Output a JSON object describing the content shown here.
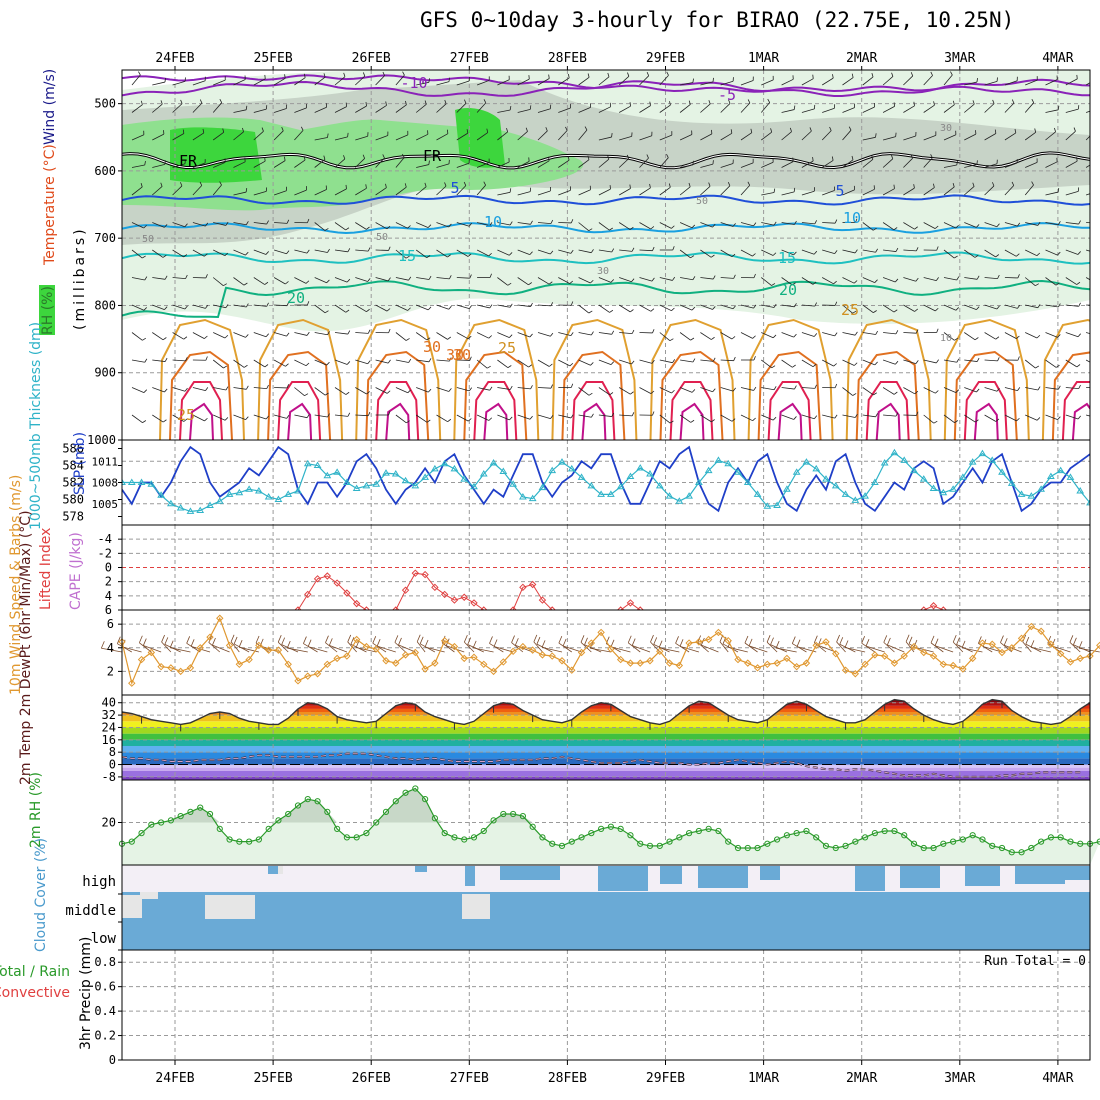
{
  "header": {
    "title": "GFS 0~10day 3-hourly for BIRAO (22.75E, 10.25N)"
  },
  "colors": {
    "grid": "#9a9a9a",
    "slp": "#1f3fc8",
    "thickness": "#2fb3c8",
    "lifted_index": "#e04040",
    "cape": "#c070d0",
    "wind_speed": "#e09830",
    "wind_barb": "#7a4a2a",
    "rh": "#2a9a2a",
    "rh_fill": "#e5f3e5",
    "cloud": "#6aaad6",
    "cloud_bg": "#f3eff6"
  },
  "chart_data": [
    {
      "id": "upper_air",
      "type": "contour",
      "ylabel": "(millibars)",
      "yticks": [
        500,
        600,
        700,
        800,
        900,
        1000
      ],
      "ylim": [
        450,
        1000
      ],
      "x": [
        "24FEB",
        "25FEB",
        "26FEB",
        "27FEB",
        "28FEB",
        "29FEB",
        "1MAR",
        "2MAR",
        "3MAR",
        "4MAR"
      ],
      "legend": [
        "RH (%)",
        "Temperature (°C)",
        "Wind (m/s)"
      ],
      "contour_labels": [
        "-10",
        "-5",
        "FR",
        "FR",
        "5",
        "5",
        "10",
        "10",
        "15",
        "15",
        "20",
        "20",
        "25",
        "25",
        "25",
        "30",
        "30",
        "30",
        "50",
        "50",
        "50",
        "30",
        "30",
        "10"
      ]
    },
    {
      "id": "slp_thickness",
      "type": "line",
      "ylabel_left": "1000~500mb Thickness (dm)",
      "ylabel_right": "SLP (mb)",
      "yticks_left": [
        578,
        580,
        582,
        584,
        586
      ],
      "yticks_right": [
        1005,
        1008,
        1011
      ],
      "series": [
        {
          "name": "SLP (mb)",
          "values": [
            1007,
            1005,
            1008,
            1008,
            1006,
            1008,
            1011,
            1013,
            1012,
            1008,
            1006,
            1007,
            1008,
            1010,
            1009,
            1011,
            1013,
            1012,
            1007,
            1005,
            1008,
            1008,
            1006,
            1008,
            1011,
            1012,
            1010,
            1007,
            1005,
            1007,
            1008,
            1010,
            1008,
            1011,
            1012,
            1009,
            1007,
            1005,
            1007,
            1006,
            1009,
            1012,
            1012,
            1008,
            1006,
            1008,
            1009,
            1011,
            1010,
            1012,
            1012,
            1008,
            1005,
            1005,
            1008,
            1011,
            1010,
            1012,
            1013,
            1008,
            1005,
            1004,
            1008,
            1010,
            1008,
            1011,
            1012,
            1008,
            1005,
            1004,
            1007,
            1009,
            1007,
            1011,
            1012,
            1008,
            1005,
            1004,
            1006,
            1008,
            1007,
            1010,
            1011,
            1010,
            1005,
            1006,
            1008,
            1010,
            1008,
            1011,
            1012,
            1008,
            1004,
            1005,
            1007,
            1008,
            1008,
            1010,
            1011,
            1012
          ]
        },
        {
          "name": "1000~500mb Thickness (dm)",
          "values": [
            582.0,
            582.0,
            582.0,
            581.8,
            580.5,
            579.5,
            579.0,
            578.6,
            578.7,
            579.3,
            579.8,
            580.6,
            580.8,
            581.2,
            581.0,
            580.3,
            580.0,
            580.6,
            581.0,
            584.2,
            584.0,
            582.8,
            583.2,
            582.0,
            581.3,
            581.6,
            581.8,
            583.1,
            583.0,
            582.2,
            581.6,
            582.6,
            583.6,
            584.2,
            583.6,
            582.4,
            581.5,
            583.0,
            584.3,
            583.3,
            581.8,
            580.3,
            580.1,
            581.4,
            583.4,
            584.4,
            583.6,
            582.6,
            581.6,
            580.6,
            580.6,
            581.5,
            582.7,
            583.7,
            583.0,
            581.6,
            580.4,
            579.8,
            580.4,
            582.0,
            583.4,
            584.6,
            584.2,
            583.2,
            582.0,
            580.6,
            579.2,
            579.3,
            581.2,
            583.2,
            584.4,
            583.6,
            582.4,
            581.6,
            580.6,
            579.9,
            580.4,
            582.0,
            584.3,
            585.5,
            584.6,
            583.4,
            582.4,
            581.3,
            580.8,
            581.2,
            582.6,
            584.4,
            585.4,
            584.6,
            583.2,
            581.9,
            580.6,
            580.4,
            581.2,
            582.7,
            583.4,
            582.6,
            581.0,
            579.6
          ]
        }
      ]
    },
    {
      "id": "stability",
      "type": "line",
      "ylabel": "Lifted Index",
      "ylabel_cape": "CAPE (J/kg)",
      "yticks": [
        -4,
        -2,
        0,
        2,
        4,
        6
      ],
      "ylim": [
        -6,
        6
      ],
      "series": [
        {
          "name": "Lifted Index",
          "segments": [
            {
              "start": 18,
              "values": [
                6.0,
                3.8,
                1.6,
                1.2,
                2.2,
                3.6,
                5.1,
                6.0
              ]
            },
            {
              "start": 28,
              "values": [
                6.0,
                3.2,
                0.8,
                1.0,
                2.8,
                3.8,
                4.6,
                4.2,
                5.0,
                6.0
              ]
            },
            {
              "start": 40,
              "values": [
                6.0,
                2.8,
                2.4,
                4.6,
                6.0
              ]
            },
            {
              "start": 51,
              "values": [
                6.0,
                5.0,
                6.0
              ]
            },
            {
              "start": 82,
              "values": [
                6.0,
                5.4,
                6.0
              ]
            }
          ]
        }
      ]
    },
    {
      "id": "wind10m",
      "type": "line",
      "ylabel": "10m Wind Speed & Barbs (m/s)",
      "yticks": [
        2,
        4,
        6
      ],
      "series": [
        {
          "name": "Speed",
          "values": [
            4.5,
            1.0,
            3.0,
            3.6,
            2.4,
            2.3,
            2.0,
            2.3,
            4.0,
            4.9,
            6.5,
            4.2,
            2.6,
            3.0,
            4.2,
            3.8,
            3.8,
            2.6,
            1.2,
            1.6,
            1.8,
            2.6,
            3.1,
            3.3,
            4.7,
            4.1,
            3.9,
            2.9,
            2.7,
            3.4,
            3.6,
            2.2,
            2.7,
            4.6,
            4.1,
            3.1,
            3.2,
            2.6,
            2.0,
            2.8,
            3.7,
            4.1,
            3.8,
            3.4,
            3.3,
            2.9,
            2.1,
            3.6,
            4.4,
            5.3,
            3.9,
            3.0,
            2.7,
            2.7,
            2.9,
            3.7,
            2.7,
            2.5,
            4.4,
            4.5,
            4.7,
            5.3,
            4.6,
            3.0,
            2.7,
            2.3,
            2.6,
            2.7,
            3.1,
            2.4,
            2.7,
            4.2,
            4.5,
            3.5,
            2.1,
            1.8,
            2.6,
            3.4,
            3.3,
            2.7,
            3.3,
            4.1,
            3.6,
            3.3,
            2.6,
            2.5,
            2.2,
            3.1,
            4.4,
            4.3,
            3.6,
            4.0,
            4.8,
            5.8,
            5.4,
            4.3,
            3.5,
            2.8,
            3.1,
            3.3,
            4.2
          ]
        }
      ]
    },
    {
      "id": "temperature",
      "type": "area",
      "ylabel": "2m Temp 2m DewPt (6hr Min/Max) (°C)",
      "yticks": [
        -8,
        0,
        8,
        16,
        24,
        32,
        40
      ],
      "ylim": [
        -10,
        45
      ],
      "series": [
        {
          "name": "2m Temp",
          "values": [
            34,
            33,
            31,
            29,
            28,
            27,
            26,
            27,
            30,
            33,
            34,
            33,
            30,
            28,
            27,
            26,
            26,
            30,
            36,
            40,
            39,
            36,
            31,
            29,
            28,
            27,
            28,
            33,
            38,
            40,
            39,
            34,
            31,
            29,
            27,
            26,
            28,
            33,
            38,
            40,
            39,
            35,
            32,
            29,
            28,
            27,
            29,
            34,
            38,
            40,
            39,
            35,
            31,
            29,
            27,
            26,
            28,
            33,
            38,
            41,
            40,
            36,
            32,
            29,
            28,
            27,
            29,
            34,
            39,
            41,
            39,
            35,
            31,
            29,
            27,
            27,
            29,
            34,
            39,
            42,
            41,
            36,
            32,
            29,
            27,
            26,
            28,
            33,
            39,
            42,
            41,
            35,
            31,
            28,
            27,
            26,
            27,
            31,
            36,
            40,
            38,
            34
          ]
        },
        {
          "name": "2m DewPt",
          "values": [
            5,
            4,
            4,
            3,
            3,
            2,
            2,
            2,
            3,
            3,
            3,
            4,
            4,
            5,
            6,
            6,
            5,
            5,
            5,
            5,
            5,
            6,
            6,
            7,
            7,
            7,
            6,
            5,
            4,
            4,
            3,
            4,
            4,
            3,
            2,
            2,
            2,
            2,
            2,
            3,
            3,
            3,
            3,
            4,
            4,
            5,
            4,
            3,
            2,
            1,
            1,
            1,
            2,
            3,
            2,
            1,
            1,
            1,
            0,
            0,
            1,
            1,
            2,
            3,
            2,
            1,
            0,
            1,
            2,
            1,
            -1,
            -2,
            -3,
            -3,
            -4,
            -3,
            -3,
            -4,
            -5,
            -6,
            -7,
            -7,
            -7,
            -6,
            -7,
            -8,
            -8,
            -8,
            -8,
            -8,
            -7,
            -7,
            -6,
            -6,
            -5,
            -5,
            -5,
            -5,
            -5
          ]
        }
      ]
    },
    {
      "id": "rh2m",
      "type": "area",
      "ylabel": "2m RH (%)",
      "yticks": [
        20
      ],
      "series": [
        {
          "name": "2m RH",
          "values": [
            10,
            11,
            15,
            19,
            20,
            21,
            23,
            25,
            27,
            24,
            17,
            12,
            11,
            11,
            12,
            17,
            21,
            24,
            28,
            31,
            30,
            25,
            17,
            13,
            13,
            15,
            20,
            25,
            30,
            34,
            36,
            31,
            22,
            15,
            13,
            12,
            13,
            16,
            21,
            24,
            24,
            23,
            18,
            13,
            10,
            9,
            11,
            13,
            15,
            17,
            18,
            17,
            14,
            10,
            9,
            9,
            11,
            13,
            15,
            16,
            17,
            16,
            11,
            8,
            8,
            8,
            10,
            12,
            14,
            15,
            16,
            13,
            9,
            8,
            9,
            11,
            13,
            15,
            16,
            16,
            14,
            10,
            8,
            8,
            10,
            11,
            12,
            14,
            12,
            9,
            8,
            6,
            6,
            8,
            11,
            13,
            13,
            11,
            10,
            10,
            11
          ]
        }
      ]
    },
    {
      "id": "cloud_cover",
      "type": "bar",
      "ylabel": "Cloud Cover (%)",
      "levels": [
        "high",
        "middle",
        "low"
      ]
    },
    {
      "id": "precip",
      "type": "bar",
      "ylabel": "3hr Precip (mm)",
      "legend": [
        "Total / Rain",
        "Convective"
      ],
      "yticks": [
        0,
        0.2,
        0.4,
        0.6,
        0.8
      ],
      "ylim": [
        0,
        0.9
      ],
      "annotation": "Run Total = 0",
      "x": [
        "24FEB",
        "25FEB",
        "26FEB",
        "27FEB",
        "28FEB",
        "29FEB",
        "1MAR",
        "2MAR",
        "3MAR",
        "4MAR"
      ]
    }
  ]
}
